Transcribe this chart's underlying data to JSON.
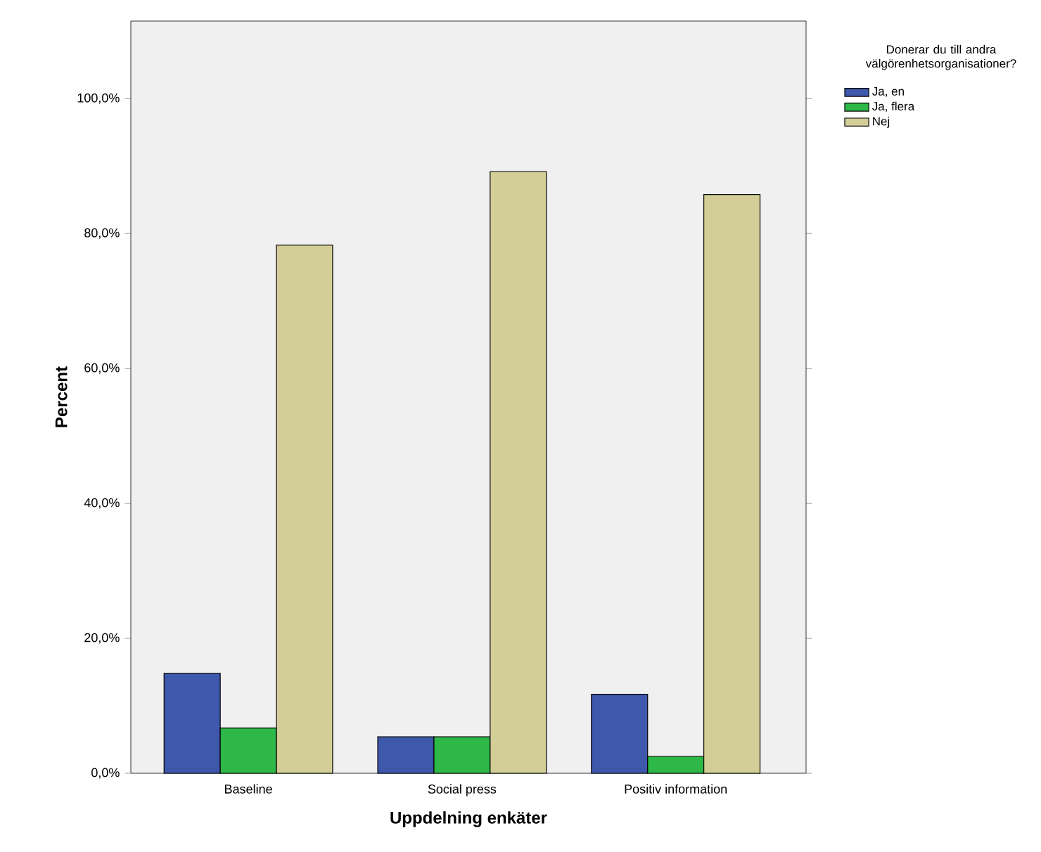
{
  "chart_data": {
    "type": "bar",
    "xlabel": "Uppdelning enkäter",
    "ylabel": "Percent",
    "legend_title": "Donerar du till andra välgörenhetsorganisationer?",
    "categories": [
      "Baseline",
      "Social press",
      "Positiv information"
    ],
    "series": [
      {
        "name": "Ja, en",
        "color": "#3e58ac",
        "values": [
          14.8,
          5.4,
          11.7
        ]
      },
      {
        "name": "Ja, flera",
        "color": "#2eb848",
        "values": [
          6.7,
          5.4,
          2.5
        ]
      },
      {
        "name": "Nej",
        "color": "#d3ce97",
        "values": [
          78.3,
          89.2,
          85.8
        ]
      }
    ],
    "ylim": [
      0,
      111.5
    ],
    "yticks": [
      {
        "value": 0,
        "label": "0,0%"
      },
      {
        "value": 20,
        "label": "20,0%"
      },
      {
        "value": 40,
        "label": "40,0%"
      },
      {
        "value": 60,
        "label": "60,0%"
      },
      {
        "value": 80,
        "label": "80,0%"
      },
      {
        "value": 100,
        "label": "100,0%"
      }
    ],
    "legend": "right",
    "grid": false
  }
}
